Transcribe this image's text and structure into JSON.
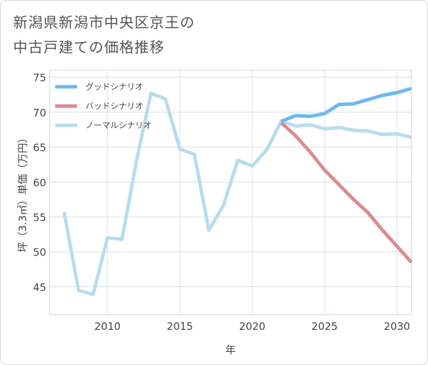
{
  "title_lines": [
    "新潟県新潟市中央区京王の",
    "中古戸建ての価格推移"
  ],
  "chart_data": {
    "type": "line",
    "title": "新潟県新潟市中央区京王の中古戸建ての価格推移",
    "xlabel": "年",
    "ylabel": "坪（3.3㎡）単価（万円）",
    "xlim": [
      2006,
      2031
    ],
    "ylim": [
      41,
      76
    ],
    "xticks": [
      2010,
      2015,
      2020,
      2025,
      2030
    ],
    "yticks": [
      45,
      50,
      55,
      60,
      65,
      70,
      75
    ],
    "grid": true,
    "legend_position": "top-left",
    "series": [
      {
        "name": "グッドシナリオ",
        "color": "#6cb8f0",
        "x": [
          2022,
          2023,
          2024,
          2025,
          2026,
          2027,
          2028,
          2029,
          2030,
          2031
        ],
        "values": [
          68.7,
          69.5,
          69.4,
          69.8,
          71.1,
          71.2,
          71.8,
          72.4,
          72.8,
          73.4
        ]
      },
      {
        "name": "バッドシナリオ",
        "color": "#dd8a92",
        "x": [
          2022,
          2023,
          2024,
          2025,
          2026,
          2027,
          2028,
          2029,
          2030,
          2031
        ],
        "values": [
          68.5,
          66.6,
          64.3,
          61.7,
          59.6,
          57.5,
          55.6,
          53.1,
          50.8,
          48.5
        ]
      },
      {
        "name": "ノーマルシナリオ",
        "color": "#b9dcec",
        "x": [
          2007,
          2008,
          2009,
          2010,
          2011,
          2012,
          2013,
          2014,
          2015,
          2016,
          2017,
          2018,
          2019,
          2020,
          2021,
          2022,
          2023,
          2024,
          2025,
          2026,
          2027,
          2028,
          2029,
          2030,
          2031
        ],
        "values": [
          55.7,
          44.5,
          43.9,
          52.0,
          51.8,
          63.0,
          72.7,
          71.9,
          64.7,
          64.0,
          53.1,
          56.6,
          63.1,
          62.3,
          64.6,
          68.7,
          68.0,
          68.2,
          67.6,
          67.8,
          67.4,
          67.3,
          66.8,
          66.9,
          66.4
        ]
      }
    ]
  }
}
